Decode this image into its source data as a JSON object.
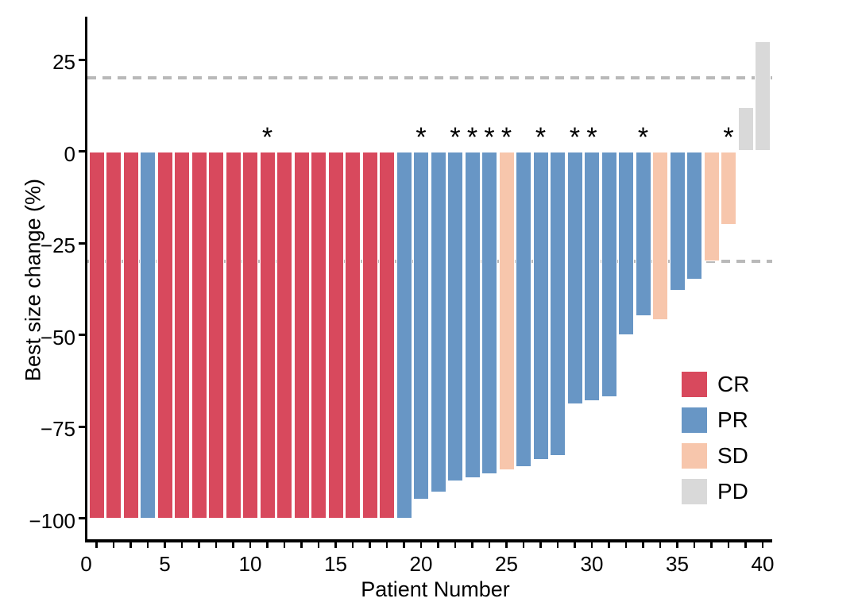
{
  "axes": {
    "x_title": "Patient Number",
    "y_title": "Best size change (%)"
  },
  "legend": {
    "items": [
      {
        "label": "CR"
      },
      {
        "label": "PR"
      },
      {
        "label": "SD"
      },
      {
        "label": "PD"
      }
    ]
  },
  "colors": {
    "CR": "#d8495d",
    "PR": "#6896c5",
    "SD": "#f7c6ac",
    "PD": "#d9d9d9",
    "reference_line": "#b9b9b9",
    "axis": "#000000"
  },
  "chart_data": {
    "type": "bar",
    "title": "",
    "xlabel": "Patient Number",
    "ylabel": "Best size change (%)",
    "ylim": [
      -106,
      37
    ],
    "xlim": [
      0.5,
      40.6
    ],
    "grid": false,
    "reference_lines": [
      20,
      -30
    ],
    "y_ticks": [
      25,
      0,
      -25,
      -50,
      -75,
      -100
    ],
    "x_tick_labels": [
      0,
      5,
      10,
      15,
      20,
      25,
      30,
      35,
      40
    ],
    "x_minor_tick_step": 1,
    "legend_position": "inside-right",
    "legend_entries": [
      "CR",
      "PR",
      "SD",
      "PD"
    ],
    "annotation_note": "*",
    "patients": [
      {
        "x": 1,
        "value": -100,
        "response": "CR",
        "asterisk": false
      },
      {
        "x": 2,
        "value": -100,
        "response": "CR",
        "asterisk": false
      },
      {
        "x": 3,
        "value": -100,
        "response": "CR",
        "asterisk": false
      },
      {
        "x": 4,
        "value": -100,
        "response": "PR",
        "asterisk": false
      },
      {
        "x": 5,
        "value": -100,
        "response": "CR",
        "asterisk": false
      },
      {
        "x": 6,
        "value": -100,
        "response": "CR",
        "asterisk": false
      },
      {
        "x": 7,
        "value": -100,
        "response": "CR",
        "asterisk": false
      },
      {
        "x": 8,
        "value": -100,
        "response": "CR",
        "asterisk": false
      },
      {
        "x": 9,
        "value": -100,
        "response": "CR",
        "asterisk": false
      },
      {
        "x": 10,
        "value": -100,
        "response": "CR",
        "asterisk": false
      },
      {
        "x": 11,
        "value": -100,
        "response": "CR",
        "asterisk": true
      },
      {
        "x": 12,
        "value": -100,
        "response": "CR",
        "asterisk": false
      },
      {
        "x": 13,
        "value": -100,
        "response": "CR",
        "asterisk": false
      },
      {
        "x": 14,
        "value": -100,
        "response": "CR",
        "asterisk": false
      },
      {
        "x": 15,
        "value": -100,
        "response": "CR",
        "asterisk": false
      },
      {
        "x": 16,
        "value": -100,
        "response": "CR",
        "asterisk": false
      },
      {
        "x": 17,
        "value": -100,
        "response": "CR",
        "asterisk": false
      },
      {
        "x": 18,
        "value": -100,
        "response": "CR",
        "asterisk": false
      },
      {
        "x": 19,
        "value": -100,
        "response": "PR",
        "asterisk": false
      },
      {
        "x": 20,
        "value": -95,
        "response": "PR",
        "asterisk": true
      },
      {
        "x": 21,
        "value": -93,
        "response": "PR",
        "asterisk": false
      },
      {
        "x": 22,
        "value": -90,
        "response": "PR",
        "asterisk": true
      },
      {
        "x": 23,
        "value": -89,
        "response": "PR",
        "asterisk": true
      },
      {
        "x": 24,
        "value": -88,
        "response": "PR",
        "asterisk": true
      },
      {
        "x": 25,
        "value": -87,
        "response": "SD",
        "asterisk": true
      },
      {
        "x": 26,
        "value": -86,
        "response": "PR",
        "asterisk": false
      },
      {
        "x": 27,
        "value": -84,
        "response": "PR",
        "asterisk": true
      },
      {
        "x": 28,
        "value": -83,
        "response": "PR",
        "asterisk": false
      },
      {
        "x": 29,
        "value": -69,
        "response": "PR",
        "asterisk": true
      },
      {
        "x": 30,
        "value": -68,
        "response": "PR",
        "asterisk": true
      },
      {
        "x": 31,
        "value": -67,
        "response": "PR",
        "asterisk": false
      },
      {
        "x": 32,
        "value": -50,
        "response": "PR",
        "asterisk": false
      },
      {
        "x": 33,
        "value": -45,
        "response": "PR",
        "asterisk": true
      },
      {
        "x": 34,
        "value": -46,
        "response": "SD",
        "asterisk": false
      },
      {
        "x": 35,
        "value": -38,
        "response": "PR",
        "asterisk": false
      },
      {
        "x": 36,
        "value": -35,
        "response": "PR",
        "asterisk": false
      },
      {
        "x": 37,
        "value": -30,
        "response": "SD",
        "asterisk": false
      },
      {
        "x": 38,
        "value": -20,
        "response": "SD",
        "asterisk": true
      },
      {
        "x": 39,
        "value": 12,
        "response": "PD",
        "asterisk": false
      },
      {
        "x": 40,
        "value": 30,
        "response": "PD",
        "asterisk": false
      }
    ]
  }
}
